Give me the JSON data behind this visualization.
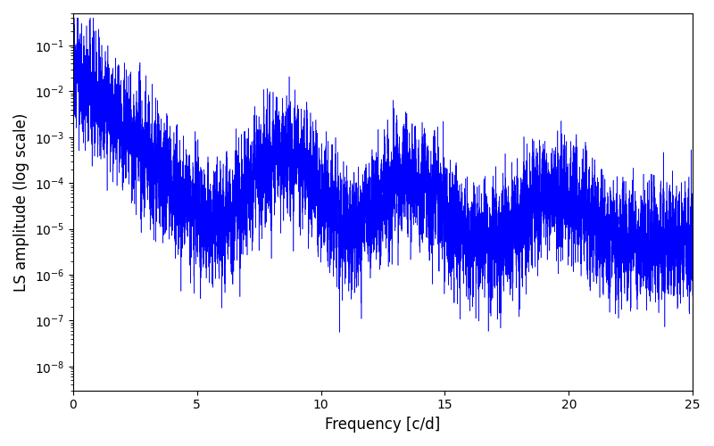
{
  "title": "",
  "xlabel": "Frequency [c/d]",
  "ylabel": "LS amplitude (log scale)",
  "line_color": "blue",
  "xmin": 0,
  "xmax": 25,
  "ymin": 3e-09,
  "ymax": 0.5,
  "background_color": "#ffffff",
  "figsize": [
    8.0,
    5.0
  ],
  "dpi": 100
}
